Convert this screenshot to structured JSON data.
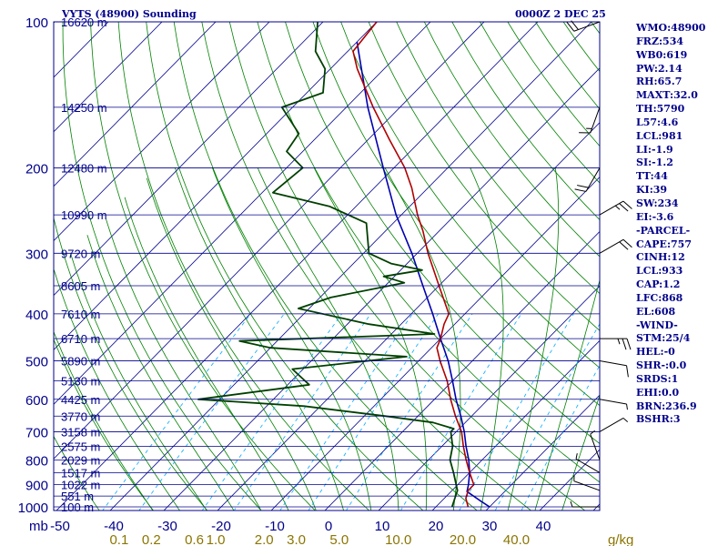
{
  "header": {
    "left": "VYTS (48900) Sounding",
    "right": "0000Z  2 DEC 25"
  },
  "indices": [
    "WMO:48900",
    "FRZ:534",
    "WB0:619",
    "PW:2.14",
    "RH:65.7",
    "MAXT:32.0",
    "TH:5790",
    "L57:4.6",
    "LCL:981",
    "LI:-1.9",
    "SI:-1.2",
    "TT:44",
    "KI:39",
    "SW:234",
    "EI:-3.6",
    "-PARCEL-",
    "CAPE:757",
    "CINH:12",
    "LCL:933",
    "CAP:1.2",
    "LFC:868",
    "EL:608",
    "-WIND-",
    "STM:25/4",
    "HEL:-0",
    "SHR-:0.0",
    "SRDS:1",
    "EHI:0.0",
    "BRN:236.9",
    "BSHR:3"
  ],
  "colors": {
    "frame": "#00008b",
    "isobar": "#00008b",
    "isotherm": "#00008b",
    "dry_adiabat": "#008000",
    "moist_adiabat": "#008000",
    "mixing_ratio": "#00aaff",
    "mixing_ratio_text": "#8b7500",
    "temperature": "#b00000",
    "dewpoint": "#004000",
    "parcel": "#0000b0"
  },
  "chart_data": {
    "type": "line",
    "subtype": "skew-t log-p sounding",
    "x_axis_label": "mb",
    "pressure_levels": [
      100,
      200,
      300,
      400,
      500,
      600,
      700,
      800,
      900,
      1000
    ],
    "height_labels": [
      {
        "p": 100,
        "label": "16620 m"
      },
      {
        "p": 150,
        "label": "14250 m"
      },
      {
        "p": 200,
        "label": "12480 m"
      },
      {
        "p": 250,
        "label": "10990 m"
      },
      {
        "p": 300,
        "label": "9720 m"
      },
      {
        "p": 350,
        "label": "8605 m"
      },
      {
        "p": 400,
        "label": "7610 m"
      },
      {
        "p": 450,
        "label": "6710 m"
      },
      {
        "p": 500,
        "label": "5890 m"
      },
      {
        "p": 550,
        "label": "5130 m"
      },
      {
        "p": 600,
        "label": "4425 m"
      },
      {
        "p": 650,
        "label": "3770 m"
      },
      {
        "p": 700,
        "label": "3158 m"
      },
      {
        "p": 750,
        "label": "2575 m"
      },
      {
        "p": 800,
        "label": "2029 m"
      },
      {
        "p": 850,
        "label": "1517 m"
      },
      {
        "p": 900,
        "label": "1022 m"
      },
      {
        "p": 950,
        "label": "551 m"
      },
      {
        "p": 1000,
        "label": "100 m"
      }
    ],
    "temperature_ticks": [
      -50,
      -40,
      -30,
      -20,
      -10,
      0,
      10,
      20,
      30,
      40
    ],
    "mixing_ratio_labels": [
      {
        "value": "0.1",
        "t": -39
      },
      {
        "value": "0.2",
        "t": -33
      },
      {
        "value": "0.6",
        "t": -25
      },
      {
        "value": "1.0",
        "t": -21
      },
      {
        "value": "2.0",
        "t": -12
      },
      {
        "value": "3.0",
        "t": -6
      },
      {
        "value": "5.0",
        "t": 2
      },
      {
        "value": "10.0",
        "t": 13
      },
      {
        "value": "20.0",
        "t": 25
      },
      {
        "value": "40.0",
        "t": 35
      }
    ],
    "mixing_ratio_unit": "g/kg",
    "temperature": [
      {
        "p": 1000,
        "t": 26
      },
      {
        "p": 960,
        "t": 24
      },
      {
        "p": 925,
        "t": 23
      },
      {
        "p": 900,
        "t": 23
      },
      {
        "p": 850,
        "t": 20
      },
      {
        "p": 800,
        "t": 17
      },
      {
        "p": 750,
        "t": 14
      },
      {
        "p": 700,
        "t": 11
      },
      {
        "p": 650,
        "t": 7
      },
      {
        "p": 600,
        "t": 3
      },
      {
        "p": 550,
        "t": -1
      },
      {
        "p": 500,
        "t": -6
      },
      {
        "p": 470,
        "t": -9
      },
      {
        "p": 450,
        "t": -10
      },
      {
        "p": 420,
        "t": -12
      },
      {
        "p": 400,
        "t": -13
      },
      {
        "p": 350,
        "t": -20
      },
      {
        "p": 300,
        "t": -28
      },
      {
        "p": 270,
        "t": -33
      },
      {
        "p": 250,
        "t": -37
      },
      {
        "p": 220,
        "t": -43
      },
      {
        "p": 200,
        "t": -48
      },
      {
        "p": 175,
        "t": -56
      },
      {
        "p": 150,
        "t": -65
      },
      {
        "p": 125,
        "t": -75
      },
      {
        "p": 115,
        "t": -79
      },
      {
        "p": 100,
        "t": -80
      }
    ],
    "dewpoint": [
      {
        "p": 1000,
        "t": 23
      },
      {
        "p": 925,
        "t": 21
      },
      {
        "p": 850,
        "t": 17
      },
      {
        "p": 800,
        "t": 14
      },
      {
        "p": 750,
        "t": 12
      },
      {
        "p": 700,
        "t": 9
      },
      {
        "p": 690,
        "t": 9
      },
      {
        "p": 670,
        "t": 4
      },
      {
        "p": 650,
        "t": -6
      },
      {
        "p": 620,
        "t": -23
      },
      {
        "p": 600,
        "t": -44
      },
      {
        "p": 560,
        "t": -26
      },
      {
        "p": 520,
        "t": -32
      },
      {
        "p": 490,
        "t": -13
      },
      {
        "p": 470,
        "t": -40
      },
      {
        "p": 455,
        "t": -47
      },
      {
        "p": 440,
        "t": -12
      },
      {
        "p": 420,
        "t": -26
      },
      {
        "p": 390,
        "t": -42
      },
      {
        "p": 370,
        "t": -38
      },
      {
        "p": 345,
        "t": -27
      },
      {
        "p": 335,
        "t": -32
      },
      {
        "p": 325,
        "t": -26
      },
      {
        "p": 315,
        "t": -33
      },
      {
        "p": 300,
        "t": -39
      },
      {
        "p": 260,
        "t": -45
      },
      {
        "p": 240,
        "t": -55
      },
      {
        "p": 225,
        "t": -68
      },
      {
        "p": 200,
        "t": -67
      },
      {
        "p": 185,
        "t": -73
      },
      {
        "p": 170,
        "t": -74
      },
      {
        "p": 150,
        "t": -82
      },
      {
        "p": 140,
        "t": -77
      },
      {
        "p": 125,
        "t": -81
      },
      {
        "p": 115,
        "t": -86
      },
      {
        "p": 100,
        "t": -91
      }
    ],
    "parcel": [
      {
        "p": 1000,
        "t": 30
      },
      {
        "p": 970,
        "t": 27
      },
      {
        "p": 930,
        "t": 23
      },
      {
        "p": 900,
        "t": 22
      },
      {
        "p": 850,
        "t": 20
      },
      {
        "p": 800,
        "t": 17.5
      },
      {
        "p": 750,
        "t": 14.5
      },
      {
        "p": 700,
        "t": 11.5
      },
      {
        "p": 650,
        "t": 8
      },
      {
        "p": 600,
        "t": 4
      },
      {
        "p": 550,
        "t": 0
      },
      {
        "p": 500,
        "t": -4.5
      },
      {
        "p": 450,
        "t": -10
      },
      {
        "p": 400,
        "t": -16
      },
      {
        "p": 350,
        "t": -23
      },
      {
        "p": 300,
        "t": -31
      },
      {
        "p": 250,
        "t": -41
      },
      {
        "p": 200,
        "t": -52
      },
      {
        "p": 150,
        "t": -66
      },
      {
        "p": 110,
        "t": -80
      }
    ],
    "wind_barbs": [
      {
        "p": 100,
        "dir": 250,
        "kt": 20
      },
      {
        "p": 150,
        "dir": 200,
        "kt": 15
      },
      {
        "p": 200,
        "dir": 210,
        "kt": 20
      },
      {
        "p": 250,
        "dir": 60,
        "kt": 25
      },
      {
        "p": 300,
        "dir": 60,
        "kt": 20
      },
      {
        "p": 450,
        "dir": 90,
        "kt": 25
      },
      {
        "p": 500,
        "dir": 100,
        "kt": 10
      },
      {
        "p": 600,
        "dir": 100,
        "kt": 5
      },
      {
        "p": 700,
        "dir": 60,
        "kt": 5
      },
      {
        "p": 800,
        "dir": 340,
        "kt": 5
      },
      {
        "p": 850,
        "dir": 300,
        "kt": 5
      },
      {
        "p": 925,
        "dir": 290,
        "kt": 5
      },
      {
        "p": 1000,
        "dir": 270,
        "kt": 5
      }
    ]
  }
}
